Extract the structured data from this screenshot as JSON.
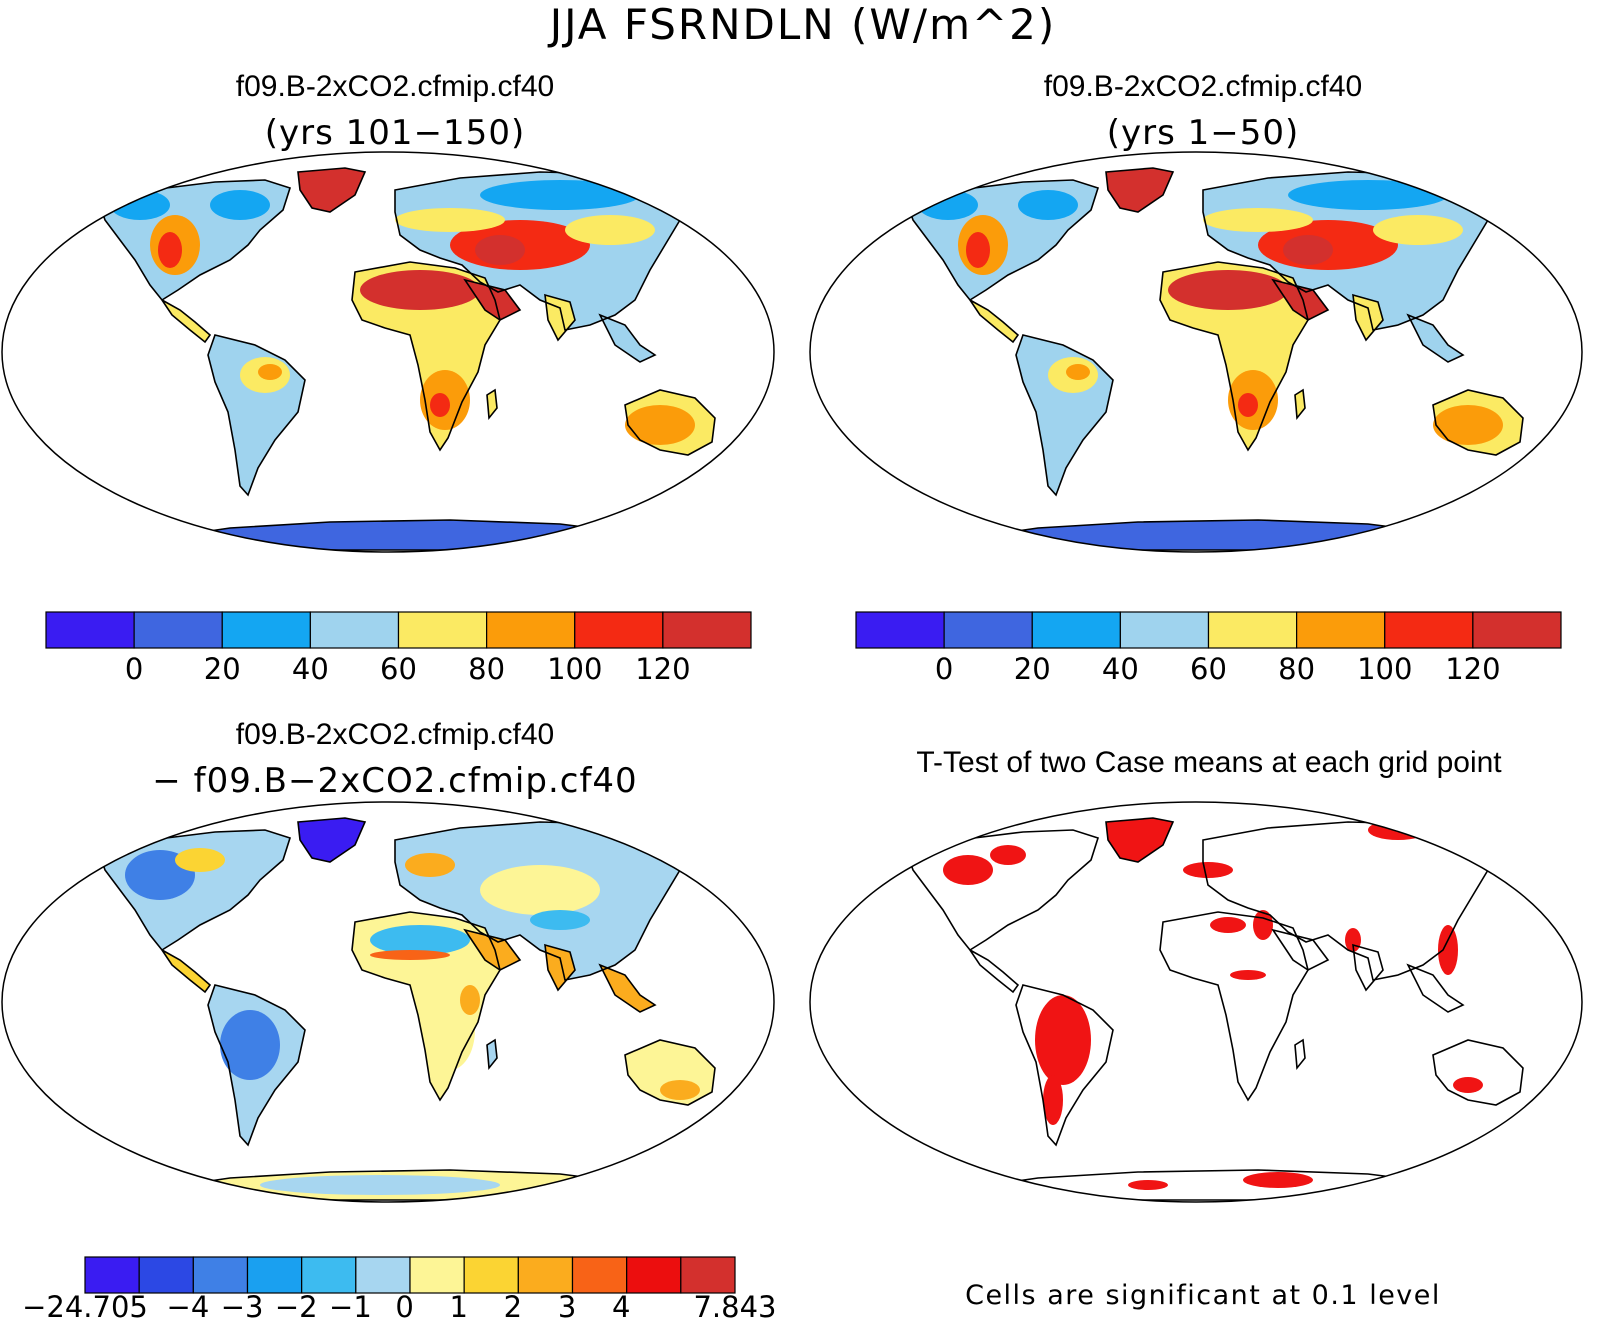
{
  "main_title": "JJA FSRNDLN (W/m^2)",
  "panels": {
    "top_left": {
      "title": "f09.B-2xCO2.cfmip.cf40",
      "subtitle": "(yrs 101−150)"
    },
    "top_right": {
      "title": "f09.B-2xCO2.cfmip.cf40",
      "subtitle": "(yrs 1−50)"
    },
    "bottom_left": {
      "title": "f09.B-2xCO2.cfmip.cf40",
      "subtitle": "− f09.B−2xCO2.cfmip.cf40"
    },
    "bottom_right": {
      "title": "T-Test of two Case means at each grid point",
      "footnote": "Cells are significant at 0.1 level"
    }
  },
  "colorbar_main": {
    "colors": [
      "#3a1cf2",
      "#3f66e0",
      "#14a6f2",
      "#9fd3ee",
      "#fbea63",
      "#fb9c0a",
      "#f42a13",
      "#d3302d"
    ],
    "tick_labels": [
      "0",
      "20",
      "40",
      "60",
      "80",
      "100",
      "120"
    ]
  },
  "colorbar_diff": {
    "colors": [
      "#3a1cf2",
      "#2c48e4",
      "#3f80e6",
      "#1aa0f0",
      "#3dbbf0",
      "#a7d6f0",
      "#fdf596",
      "#fbd433",
      "#fbac1e",
      "#f86317",
      "#ec0e0e",
      "#d3302d"
    ],
    "tick_labels": [
      "−24.705",
      "−4",
      "−3",
      "−2",
      "−1",
      "0",
      "1",
      "2",
      "3",
      "4",
      "7.843"
    ]
  },
  "significance_color": "#f01414"
}
